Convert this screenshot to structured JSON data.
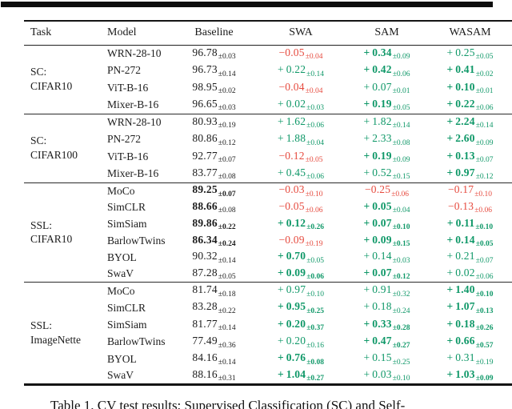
{
  "caption": {
    "text": "Table 1. CV test results: Supervised Classification (SC) and Self-"
  },
  "colors": {
    "green": "#0f9868",
    "red": "#e64a3e",
    "text": "#1c1c1c",
    "rule": "#141414"
  },
  "table": {
    "headers": [
      "Task",
      "Model",
      "Baseline",
      "SWA",
      "SAM",
      "WASAM"
    ],
    "blocks": [
      {
        "task": [
          "SC:",
          "CIFAR10"
        ],
        "rows": [
          {
            "model": "WRN-28-10",
            "baseline": {
              "m": "96.78",
              "s": "±0.03",
              "c": "k",
              "b": false,
              "bs": false
            },
            "swa": {
              "m": "−0.05",
              "s": "±0.04",
              "c": "r",
              "b": false,
              "bs": false
            },
            "sam": {
              "m": "+ 0.34",
              "s": "±0.09",
              "c": "g",
              "b": true,
              "bs": false
            },
            "wasam": {
              "m": "+ 0.25",
              "s": "±0.05",
              "c": "g",
              "b": false,
              "bs": false
            }
          },
          {
            "model": "PN-272",
            "baseline": {
              "m": "96.73",
              "s": "±0.14",
              "c": "k",
              "b": false,
              "bs": false
            },
            "swa": {
              "m": "+ 0.22",
              "s": "±0.14",
              "c": "g",
              "b": false,
              "bs": false
            },
            "sam": {
              "m": "+ 0.42",
              "s": "±0.06",
              "c": "g",
              "b": true,
              "bs": false
            },
            "wasam": {
              "m": "+ 0.41",
              "s": "±0.02",
              "c": "g",
              "b": true,
              "bs": false
            }
          },
          {
            "model": "ViT-B-16",
            "baseline": {
              "m": "98.95",
              "s": "±0.02",
              "c": "k",
              "b": false,
              "bs": false
            },
            "swa": {
              "m": "−0.04",
              "s": "±0.04",
              "c": "r",
              "b": false,
              "bs": false
            },
            "sam": {
              "m": "+ 0.07",
              "s": "±0.01",
              "c": "g",
              "b": false,
              "bs": false
            },
            "wasam": {
              "m": "+ 0.10",
              "s": "±0.01",
              "c": "g",
              "b": true,
              "bs": false
            }
          },
          {
            "model": "Mixer-B-16",
            "baseline": {
              "m": "96.65",
              "s": "±0.03",
              "c": "k",
              "b": false,
              "bs": false
            },
            "swa": {
              "m": "+ 0.02",
              "s": "±0.03",
              "c": "g",
              "b": false,
              "bs": false
            },
            "sam": {
              "m": "+ 0.19",
              "s": "±0.05",
              "c": "g",
              "b": true,
              "bs": false
            },
            "wasam": {
              "m": "+ 0.22",
              "s": "±0.06",
              "c": "g",
              "b": true,
              "bs": false
            }
          }
        ]
      },
      {
        "task": [
          "SC:",
          "CIFAR100"
        ],
        "rows": [
          {
            "model": "WRN-28-10",
            "baseline": {
              "m": "80.93",
              "s": "±0.19",
              "c": "k",
              "b": false,
              "bs": false
            },
            "swa": {
              "m": "+ 1.62",
              "s": "±0.06",
              "c": "g",
              "b": false,
              "bs": false
            },
            "sam": {
              "m": "+ 1.82",
              "s": "±0.14",
              "c": "g",
              "b": false,
              "bs": false
            },
            "wasam": {
              "m": "+ 2.24",
              "s": "±0.14",
              "c": "g",
              "b": true,
              "bs": false
            }
          },
          {
            "model": "PN-272",
            "baseline": {
              "m": "80.86",
              "s": "±0.12",
              "c": "k",
              "b": false,
              "bs": false
            },
            "swa": {
              "m": "+ 1.88",
              "s": "±0.04",
              "c": "g",
              "b": false,
              "bs": false
            },
            "sam": {
              "m": "+ 2.33",
              "s": "±0.08",
              "c": "g",
              "b": false,
              "bs": false
            },
            "wasam": {
              "m": "+ 2.60",
              "s": "±0.09",
              "c": "g",
              "b": true,
              "bs": false
            }
          },
          {
            "model": "ViT-B-16",
            "baseline": {
              "m": "92.77",
              "s": "±0.07",
              "c": "k",
              "b": false,
              "bs": false
            },
            "swa": {
              "m": "−0.12",
              "s": "±0.05",
              "c": "r",
              "b": false,
              "bs": false
            },
            "sam": {
              "m": "+ 0.19",
              "s": "±0.09",
              "c": "g",
              "b": true,
              "bs": false
            },
            "wasam": {
              "m": "+ 0.13",
              "s": "±0.07",
              "c": "g",
              "b": true,
              "bs": false
            }
          },
          {
            "model": "Mixer-B-16",
            "baseline": {
              "m": "83.77",
              "s": "±0.08",
              "c": "k",
              "b": false,
              "bs": false
            },
            "swa": {
              "m": "+ 0.45",
              "s": "±0.06",
              "c": "g",
              "b": false,
              "bs": false
            },
            "sam": {
              "m": "+ 0.52",
              "s": "±0.15",
              "c": "g",
              "b": false,
              "bs": false
            },
            "wasam": {
              "m": "+ 0.97",
              "s": "±0.12",
              "c": "g",
              "b": true,
              "bs": false
            }
          }
        ]
      },
      {
        "task": [
          "SSL:",
          "CIFAR10"
        ],
        "rows": [
          {
            "model": "MoCo",
            "baseline": {
              "m": "89.25",
              "s": "±0.07",
              "c": "k",
              "b": true,
              "bs": true
            },
            "swa": {
              "m": "−0.03",
              "s": "±0.10",
              "c": "r",
              "b": false,
              "bs": false
            },
            "sam": {
              "m": "−0.25",
              "s": "±0.06",
              "c": "r",
              "b": false,
              "bs": false
            },
            "wasam": {
              "m": "−0.17",
              "s": "±0.10",
              "c": "r",
              "b": false,
              "bs": false
            }
          },
          {
            "model": "SimCLR",
            "baseline": {
              "m": "88.66",
              "s": "±0.08",
              "c": "k",
              "b": true,
              "bs": false
            },
            "swa": {
              "m": "−0.05",
              "s": "±0.06",
              "c": "r",
              "b": false,
              "bs": false
            },
            "sam": {
              "m": "+ 0.05",
              "s": "±0.04",
              "c": "g",
              "b": true,
              "bs": false
            },
            "wasam": {
              "m": "−0.13",
              "s": "±0.06",
              "c": "r",
              "b": false,
              "bs": false
            }
          },
          {
            "model": "SimSiam",
            "baseline": {
              "m": "89.86",
              "s": "±0.22",
              "c": "k",
              "b": true,
              "bs": true
            },
            "swa": {
              "m": "+ 0.12",
              "s": "±0.26",
              "c": "g",
              "b": true,
              "bs": true
            },
            "sam": {
              "m": "+ 0.07",
              "s": "±0.10",
              "c": "g",
              "b": true,
              "bs": true
            },
            "wasam": {
              "m": "+ 0.11",
              "s": "±0.10",
              "c": "g",
              "b": true,
              "bs": true
            }
          },
          {
            "model": "BarlowTwins",
            "baseline": {
              "m": "86.34",
              "s": "±0.24",
              "c": "k",
              "b": true,
              "bs": true
            },
            "swa": {
              "m": "−0.09",
              "s": "±0.19",
              "c": "r",
              "b": false,
              "bs": false
            },
            "sam": {
              "m": "+ 0.09",
              "s": "±0.15",
              "c": "g",
              "b": true,
              "bs": true
            },
            "wasam": {
              "m": "+ 0.14",
              "s": "±0.05",
              "c": "g",
              "b": true,
              "bs": true
            }
          },
          {
            "model": "BYOL",
            "baseline": {
              "m": "90.32",
              "s": "±0.14",
              "c": "k",
              "b": false,
              "bs": false
            },
            "swa": {
              "m": "+ 0.70",
              "s": "±0.05",
              "c": "g",
              "b": true,
              "bs": false
            },
            "sam": {
              "m": "+ 0.14",
              "s": "±0.03",
              "c": "g",
              "b": false,
              "bs": false
            },
            "wasam": {
              "m": "+ 0.21",
              "s": "±0.07",
              "c": "g",
              "b": false,
              "bs": false
            }
          },
          {
            "model": "SwaV",
            "baseline": {
              "m": "87.28",
              "s": "±0.05",
              "c": "k",
              "b": false,
              "bs": false
            },
            "swa": {
              "m": "+ 0.09",
              "s": "±0.06",
              "c": "g",
              "b": true,
              "bs": true
            },
            "sam": {
              "m": "+ 0.07",
              "s": "±0.12",
              "c": "g",
              "b": true,
              "bs": true
            },
            "wasam": {
              "m": "+ 0.02",
              "s": "±0.06",
              "c": "g",
              "b": false,
              "bs": false
            }
          }
        ]
      },
      {
        "task": [
          "SSL:",
          "ImageNette"
        ],
        "rows": [
          {
            "model": "MoCo",
            "baseline": {
              "m": "81.74",
              "s": "±0.18",
              "c": "k",
              "b": false,
              "bs": false
            },
            "swa": {
              "m": "+ 0.97",
              "s": "±0.10",
              "c": "g",
              "b": false,
              "bs": false
            },
            "sam": {
              "m": "+ 0.91",
              "s": "±0.32",
              "c": "g",
              "b": false,
              "bs": false
            },
            "wasam": {
              "m": "+ 1.40",
              "s": "±0.10",
              "c": "g",
              "b": true,
              "bs": true
            }
          },
          {
            "model": "SimCLR",
            "baseline": {
              "m": "83.28",
              "s": "±0.22",
              "c": "k",
              "b": false,
              "bs": false
            },
            "swa": {
              "m": "+ 0.95",
              "s": "±0.25",
              "c": "g",
              "b": true,
              "bs": true
            },
            "sam": {
              "m": "+ 0.18",
              "s": "±0.24",
              "c": "g",
              "b": false,
              "bs": false
            },
            "wasam": {
              "m": "+ 1.07",
              "s": "±0.13",
              "c": "g",
              "b": true,
              "bs": true
            }
          },
          {
            "model": "SimSiam",
            "baseline": {
              "m": "81.77",
              "s": "±0.14",
              "c": "k",
              "b": false,
              "bs": false
            },
            "swa": {
              "m": "+ 0.20",
              "s": "±0.37",
              "c": "g",
              "b": true,
              "bs": true
            },
            "sam": {
              "m": "+ 0.33",
              "s": "±0.28",
              "c": "g",
              "b": true,
              "bs": true
            },
            "wasam": {
              "m": "+ 0.18",
              "s": "±0.26",
              "c": "g",
              "b": true,
              "bs": true
            }
          },
          {
            "model": "BarlowTwins",
            "baseline": {
              "m": "77.49",
              "s": "±0.36",
              "c": "k",
              "b": false,
              "bs": false
            },
            "swa": {
              "m": "+ 0.20",
              "s": "±0.16",
              "c": "g",
              "b": false,
              "bs": false
            },
            "sam": {
              "m": "+ 0.47",
              "s": "±0.27",
              "c": "g",
              "b": true,
              "bs": true
            },
            "wasam": {
              "m": "+ 0.66",
              "s": "±0.57",
              "c": "g",
              "b": true,
              "bs": true
            }
          },
          {
            "model": "BYOL",
            "baseline": {
              "m": "84.16",
              "s": "±0.14",
              "c": "k",
              "b": false,
              "bs": false
            },
            "swa": {
              "m": "+ 0.76",
              "s": "±0.08",
              "c": "g",
              "b": true,
              "bs": true
            },
            "sam": {
              "m": "+ 0.15",
              "s": "±0.25",
              "c": "g",
              "b": false,
              "bs": false
            },
            "wasam": {
              "m": "+ 0.31",
              "s": "±0.19",
              "c": "g",
              "b": false,
              "bs": false
            }
          },
          {
            "model": "SwaV",
            "baseline": {
              "m": "88.16",
              "s": "±0.31",
              "c": "k",
              "b": false,
              "bs": false
            },
            "swa": {
              "m": "+ 1.04",
              "s": "±0.27",
              "c": "g",
              "b": true,
              "bs": true
            },
            "sam": {
              "m": "+ 0.03",
              "s": "±0.10",
              "c": "g",
              "b": false,
              "bs": false
            },
            "wasam": {
              "m": "+ 1.03",
              "s": "±0.09",
              "c": "g",
              "b": true,
              "bs": true
            }
          }
        ]
      }
    ]
  }
}
